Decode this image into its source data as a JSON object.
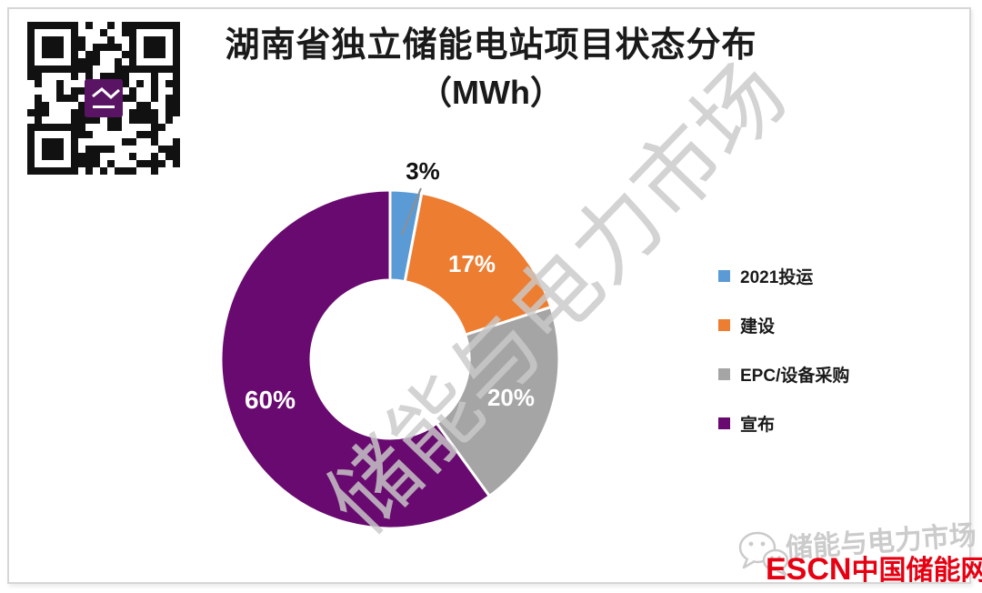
{
  "title": {
    "line1": "湖南省独立储能电站项目状态分布",
    "line2": "（MWh）"
  },
  "chart_data": {
    "type": "pie",
    "subtype": "donut",
    "title": "湖南省独立储能电站项目状态分布",
    "units_label": "（MWh）",
    "categories": [
      "2021投运",
      "建设",
      "EPC/设备采购",
      "宣布"
    ],
    "values": [
      3,
      17,
      20,
      60
    ],
    "labels": [
      "3%",
      "17%",
      "20%",
      "60%"
    ],
    "colors": [
      "#5B9BD5",
      "#ED7D31",
      "#A5A5A5",
      "#680A6F"
    ],
    "start_angle_deg": 0,
    "direction": "clockwise",
    "hole_ratio": 0.47,
    "legend_position": "right"
  },
  "legend": {
    "items": [
      {
        "label": "2021投运",
        "color": "#5B9BD5"
      },
      {
        "label": "建设",
        "color": "#ED7D31"
      },
      {
        "label": "EPC/设备采购",
        "color": "#A5A5A5"
      },
      {
        "label": "宣布",
        "color": "#680A6F"
      }
    ]
  },
  "watermarks": {
    "diagonal_text": "储能与电力市场",
    "footer_text": "储能与电力市场"
  },
  "brand": {
    "escn": "ESCN",
    "site": "中国储能网",
    "color": "#E60012"
  },
  "colors": {
    "card_border": "#d6d6d6",
    "watermark_gray": "#c9c9c9",
    "qr_logo_purple": "#591563"
  }
}
